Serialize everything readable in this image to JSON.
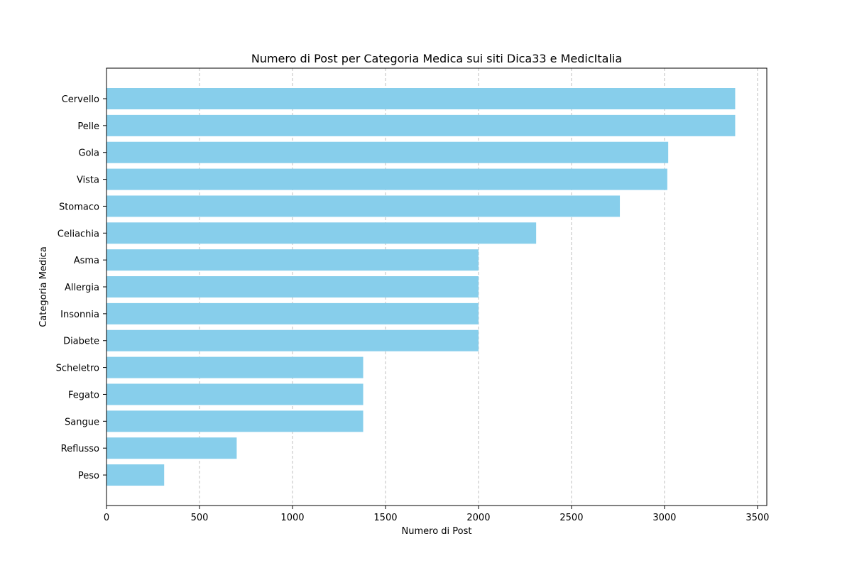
{
  "chart_data": {
    "type": "bar",
    "orientation": "horizontal",
    "title": "Numero di Post per Categoria Medica sui siti Dica33 e MedicItalia",
    "xlabel": "Numero di Post",
    "ylabel": "Categoria Medica",
    "categories": [
      "Cervello",
      "Pelle",
      "Gola",
      "Vista",
      "Stomaco",
      "Celiachia",
      "Asma",
      "Allergia",
      "Insonnia",
      "Diabete",
      "Scheletro",
      "Fegato",
      "Sangue",
      "Reflusso",
      "Peso"
    ],
    "values": [
      3380,
      3380,
      3020,
      3015,
      2760,
      2310,
      2000,
      2000,
      2000,
      2000,
      1380,
      1380,
      1380,
      700,
      310
    ],
    "xlim": [
      0,
      3550
    ],
    "xticks": [
      "0",
      "500",
      "1000",
      "1500",
      "2000",
      "2500",
      "3000",
      "3500"
    ],
    "grid": "x-dashed",
    "colors": {
      "bar": "#87ceeb",
      "grid": "#b0b0b0",
      "axis": "#000000"
    }
  }
}
